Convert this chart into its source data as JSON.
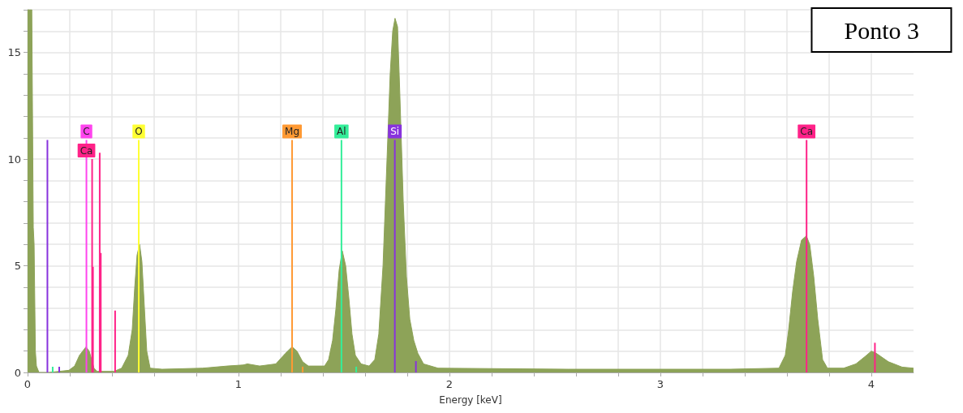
{
  "chart_data": {
    "type": "area",
    "title": "Ponto 3",
    "xlabel": "Energy [keV]",
    "xlim": [
      0,
      4.2
    ],
    "ylim": [
      0,
      17
    ],
    "xticks": [
      0,
      {
        "value": 0.2,
        "label": null
      },
      {
        "value": 0.4,
        "label": null
      },
      {
        "value": 0.6,
        "label": null
      },
      {
        "value": 0.8,
        "label": null
      },
      1,
      {
        "value": 1.2,
        "label": null
      },
      {
        "value": 1.4,
        "label": null
      },
      {
        "value": 1.6,
        "label": null
      },
      {
        "value": 1.8,
        "label": null
      },
      2,
      {
        "value": 2.2,
        "label": null
      },
      {
        "value": 2.4,
        "label": null
      },
      {
        "value": 2.6,
        "label": null
      },
      {
        "value": 2.8,
        "label": null
      },
      3,
      {
        "value": 3.2,
        "label": null
      },
      {
        "value": 3.4,
        "label": null
      },
      {
        "value": 3.6,
        "label": null
      },
      {
        "value": 3.8,
        "label": null
      },
      4
    ],
    "yticks": [
      0,
      {
        "value": 1,
        "label": null
      },
      {
        "value": 2,
        "label": null
      },
      {
        "value": 3,
        "label": null
      },
      {
        "value": 4,
        "label": null
      },
      5,
      {
        "value": 6,
        "label": null
      },
      {
        "value": 7,
        "label": null
      },
      {
        "value": 8,
        "label": null
      },
      {
        "value": 9,
        "label": null
      },
      10,
      {
        "value": 11,
        "label": null
      },
      {
        "value": 12,
        "label": null
      },
      {
        "value": 13,
        "label": null
      },
      {
        "value": 14,
        "label": null
      },
      15,
      {
        "value": 16,
        "label": null
      },
      {
        "value": 17,
        "label": null
      }
    ],
    "grid": true,
    "marker": "none",
    "series": [
      {
        "color": "#8da358",
        "x": [
          0,
          0.02,
          0.027,
          0.031,
          0.037,
          0.042,
          0.054,
          0.1,
          0.15,
          0.196,
          0.223,
          0.246,
          0.277,
          0.292,
          0.304,
          0.315,
          0.33,
          0.41,
          0.446,
          0.477,
          0.496,
          0.508,
          0.519,
          0.531,
          0.542,
          0.554,
          0.565,
          0.581,
          0.638,
          0.83,
          0.946,
          1.023,
          1.042,
          1.1,
          1.177,
          1.223,
          1.254,
          1.277,
          1.304,
          1.331,
          1.408,
          1.427,
          1.446,
          1.462,
          1.477,
          1.492,
          1.508,
          1.523,
          1.538,
          1.554,
          1.581,
          1.619,
          1.646,
          1.665,
          1.685,
          1.704,
          1.719,
          1.731,
          1.742,
          1.754,
          1.765,
          1.781,
          1.796,
          1.812,
          1.831,
          1.85,
          1.877,
          1.946,
          2.562,
          3.331,
          3.562,
          3.592,
          3.608,
          3.627,
          3.646,
          3.669,
          3.692,
          3.708,
          3.727,
          3.746,
          3.769,
          3.792,
          3.869,
          3.927,
          3.977,
          4.0,
          4.023,
          4.081,
          4.146,
          4.2
        ],
        "values": [
          17,
          17,
          6.8,
          6.0,
          1.0,
          0.3,
          0.0,
          0.0,
          0.05,
          0.1,
          0.3,
          0.8,
          1.2,
          1.0,
          0.6,
          0.2,
          0.05,
          0.05,
          0.2,
          0.8,
          2.0,
          4.0,
          5.5,
          6.0,
          5.2,
          3.0,
          1.0,
          0.2,
          0.15,
          0.2,
          0.3,
          0.35,
          0.4,
          0.3,
          0.4,
          0.9,
          1.2,
          1.0,
          0.5,
          0.3,
          0.3,
          0.6,
          1.5,
          3.0,
          4.8,
          5.7,
          5.0,
          3.5,
          1.8,
          0.8,
          0.4,
          0.3,
          0.6,
          1.8,
          5,
          10,
          14,
          16,
          16.6,
          16.2,
          13,
          8,
          4.5,
          2.5,
          1.5,
          0.9,
          0.4,
          0.2,
          0.15,
          0.15,
          0.2,
          0.8,
          2.0,
          3.8,
          5.2,
          6.2,
          6.4,
          6.0,
          4.5,
          2.5,
          0.6,
          0.2,
          0.2,
          0.4,
          0.8,
          1.0,
          0.9,
          0.5,
          0.25,
          0.2
        ]
      },
      {
        "type": "bar",
        "color": "#ff44ee",
        "x": [
          0.279
        ],
        "values": [
          10.9
        ],
        "value_labels": [
          "C"
        ]
      },
      {
        "type": "bar",
        "color": "#ff2288",
        "x": [
          0.306,
          0.31,
          0.342,
          0.347,
          0.415,
          3.693,
          4.017
        ],
        "values": [
          10.0,
          4.95,
          10.3,
          5.6,
          2.9,
          10.9,
          1.39
        ],
        "value_labels": [
          "Ca",
          null,
          null,
          null,
          null,
          "Ca",
          null
        ]
      },
      {
        "type": "bar",
        "color": "#ffff33",
        "x": [
          0.527
        ],
        "values": [
          10.9
        ],
        "value_labels": [
          "O"
        ]
      },
      {
        "type": "bar",
        "color": "#ff9933",
        "x": [
          1.254,
          1.304
        ],
        "values": [
          10.9,
          0.27
        ],
        "value_labels": [
          "Mg",
          null
        ]
      },
      {
        "type": "bar",
        "color": "#33ee99",
        "x": [
          0.119,
          1.488,
          1.558
        ],
        "values": [
          0.27,
          10.9,
          0.27
        ],
        "value_labels": [
          null,
          "Al",
          null
        ]
      },
      {
        "type": "bar",
        "color": "#8833dd",
        "x": [
          0.094,
          0.15,
          1.741,
          1.841
        ],
        "values": [
          10.9,
          0.27,
          10.9,
          0.53
        ],
        "value_labels": [
          null,
          null,
          "Si",
          null
        ]
      }
    ]
  }
}
